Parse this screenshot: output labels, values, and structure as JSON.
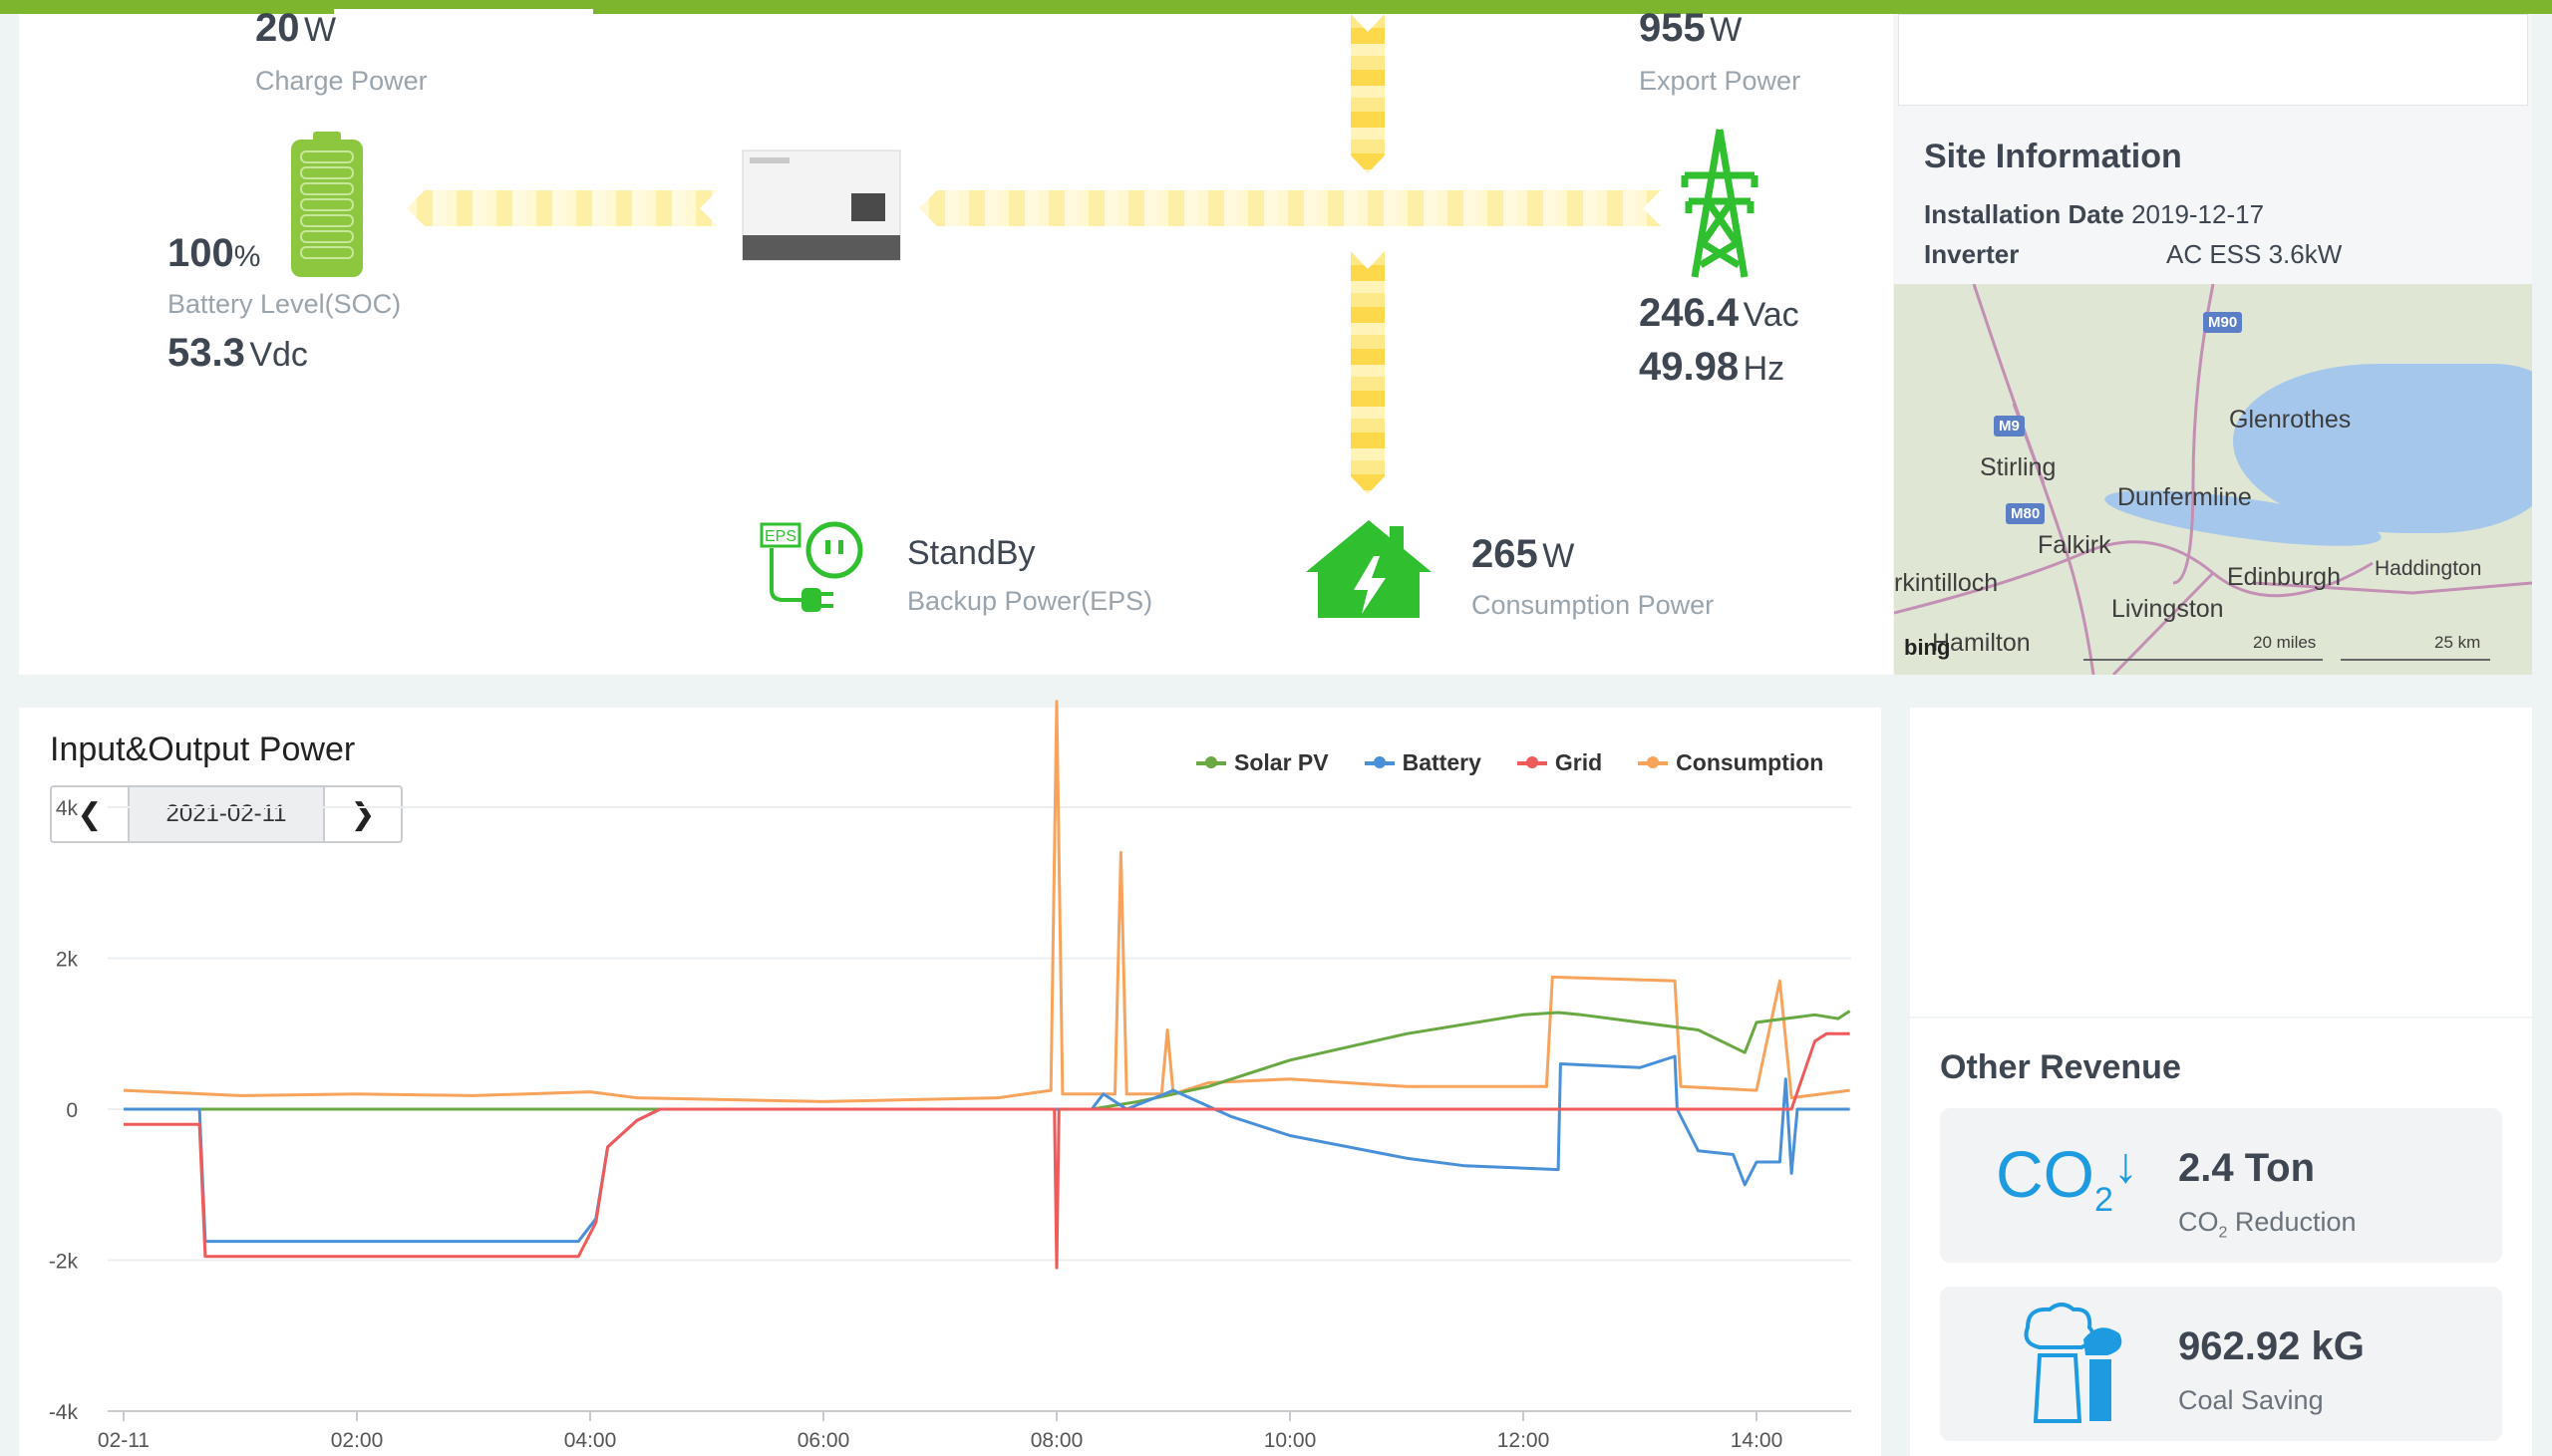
{
  "flow": {
    "charge": {
      "value": "20",
      "unit": "W",
      "label": "Charge Power"
    },
    "battery": {
      "soc_value": "100",
      "soc_unit": "%",
      "soc_label": "Battery Level(SOC)",
      "voltage_value": "53.3",
      "voltage_unit": "Vdc"
    },
    "export": {
      "value": "955",
      "unit": "W",
      "label": "Export Power"
    },
    "grid": {
      "voltage_value": "246.4",
      "voltage_unit": "Vac",
      "freq_value": "49.98",
      "freq_unit": "Hz"
    },
    "eps": {
      "status": "StandBy",
      "label": "Backup Power(EPS)",
      "tag": "EPS"
    },
    "consumption": {
      "value": "265",
      "unit": "W",
      "label": "Consumption Power"
    }
  },
  "site": {
    "title": "Site Information",
    "install_label": "Installation Date",
    "install_value": "2019-12-17",
    "inverter_label": "Inverter",
    "inverter_value": "AC ESS 3.6kW",
    "map": {
      "towns": [
        "Glenrothes",
        "Stirling",
        "Dunfermline",
        "Falkirk",
        "Edinburgh",
        "Haddington",
        "rkintilloch",
        "Livingston",
        "Hamilton"
      ],
      "roads": [
        "M90",
        "M9",
        "M80"
      ],
      "scale_miles": "20 miles",
      "scale_km": "25 km",
      "attribution": "bing"
    }
  },
  "chart": {
    "title": "Input&Output Power",
    "date": "2021-02-11",
    "colors": {
      "solar": "#6aa843",
      "battery": "#4a90d9",
      "grid": "#ef5a5a",
      "consumption": "#f7a35c"
    }
  },
  "chart_data": {
    "type": "line",
    "title": "Input&Output Power",
    "x_ticks": [
      "02-11",
      "02:00",
      "04:00",
      "06:00",
      "08:00",
      "10:00",
      "12:00",
      "14:00"
    ],
    "y_ticks": [
      "4k",
      "2k",
      "0",
      "-2k",
      "-4k"
    ],
    "ylim": [
      -4000,
      4000
    ],
    "xlim_hours": [
      0,
      14.8
    ],
    "grid": true,
    "legend": "top-right",
    "series": [
      {
        "name": "Solar PV",
        "color": "#6aa843",
        "points": [
          [
            0,
            0
          ],
          [
            8.3,
            0
          ],
          [
            8.7,
            100
          ],
          [
            9.3,
            300
          ],
          [
            10,
            650
          ],
          [
            11,
            1000
          ],
          [
            12,
            1250
          ],
          [
            12.3,
            1280
          ],
          [
            12.5,
            1250
          ],
          [
            13.5,
            1050
          ],
          [
            13.9,
            750
          ],
          [
            14,
            1150
          ],
          [
            14.5,
            1250
          ],
          [
            14.7,
            1200
          ],
          [
            14.8,
            1300
          ]
        ]
      },
      {
        "name": "Battery",
        "color": "#4a90d9",
        "points": [
          [
            0,
            0
          ],
          [
            0.65,
            0
          ],
          [
            0.7,
            -1750
          ],
          [
            3.9,
            -1750
          ],
          [
            4.05,
            -1450
          ],
          [
            4.15,
            -500
          ],
          [
            4.4,
            -150
          ],
          [
            4.6,
            0
          ],
          [
            8.3,
            0
          ],
          [
            8.4,
            200
          ],
          [
            8.6,
            0
          ],
          [
            9,
            250
          ],
          [
            9.5,
            -100
          ],
          [
            10,
            -350
          ],
          [
            11,
            -650
          ],
          [
            11.5,
            -750
          ],
          [
            12.3,
            -800
          ],
          [
            12.32,
            600
          ],
          [
            13,
            550
          ],
          [
            13.3,
            700
          ],
          [
            13.32,
            0
          ],
          [
            13.5,
            -550
          ],
          [
            13.8,
            -600
          ],
          [
            13.9,
            -1000
          ],
          [
            14,
            -700
          ],
          [
            14.2,
            -700
          ],
          [
            14.25,
            400
          ],
          [
            14.3,
            -850
          ],
          [
            14.35,
            0
          ],
          [
            14.8,
            0
          ]
        ]
      },
      {
        "name": "Grid",
        "color": "#ef5a5a",
        "points": [
          [
            0,
            -200
          ],
          [
            0.65,
            -200
          ],
          [
            0.7,
            -1950
          ],
          [
            3.9,
            -1950
          ],
          [
            4.05,
            -1500
          ],
          [
            4.15,
            -500
          ],
          [
            4.4,
            -150
          ],
          [
            4.6,
            0
          ],
          [
            7.98,
            0
          ],
          [
            8,
            -2100
          ],
          [
            8.02,
            0
          ],
          [
            14.3,
            0
          ],
          [
            14.5,
            900
          ],
          [
            14.6,
            1000
          ],
          [
            14.8,
            1000
          ]
        ]
      },
      {
        "name": "Consumption",
        "color": "#f7a35c",
        "points": [
          [
            0,
            250
          ],
          [
            1,
            180
          ],
          [
            2,
            200
          ],
          [
            3,
            180
          ],
          [
            4,
            230
          ],
          [
            4.4,
            150
          ],
          [
            6,
            100
          ],
          [
            7.5,
            150
          ],
          [
            7.95,
            250
          ],
          [
            8,
            5400
          ],
          [
            8.05,
            200
          ],
          [
            8.5,
            200
          ],
          [
            8.55,
            3400
          ],
          [
            8.6,
            200
          ],
          [
            8.9,
            200
          ],
          [
            8.95,
            1050
          ],
          [
            9,
            200
          ],
          [
            9.3,
            350
          ],
          [
            10,
            400
          ],
          [
            11,
            300
          ],
          [
            12.2,
            300
          ],
          [
            12.25,
            1750
          ],
          [
            13.3,
            1700
          ],
          [
            13.35,
            300
          ],
          [
            14,
            250
          ],
          [
            14.2,
            1700
          ],
          [
            14.3,
            150
          ],
          [
            14.8,
            250
          ]
        ]
      }
    ]
  },
  "revenue": {
    "title": "Other Revenue",
    "co2": {
      "value": "2.4 Ton",
      "label_prefix": "CO",
      "label_sub": "2",
      "label_suffix": " Reduction",
      "icon_text": "CO",
      "icon_sub": "2"
    },
    "coal": {
      "value": "962.92 kG",
      "label": "Coal Saving"
    }
  }
}
